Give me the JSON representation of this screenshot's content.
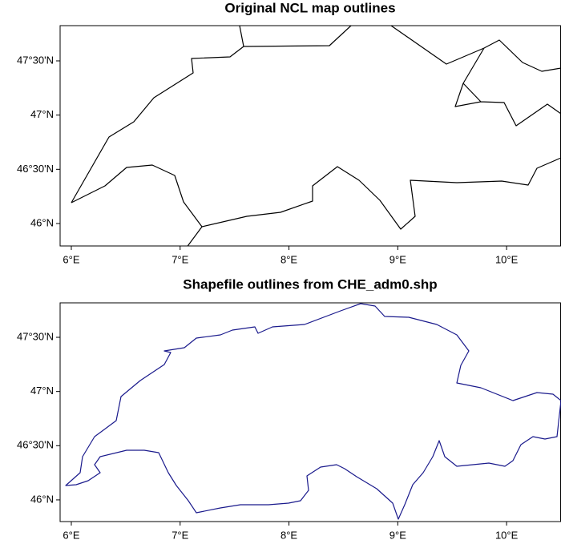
{
  "chart_data": [
    {
      "type": "map",
      "title": "Original NCL map outlines",
      "color": "#000000",
      "xlim": [
        5.897,
        10.5
      ],
      "ylim": [
        45.793,
        47.825
      ],
      "xticks": [
        {
          "value": 6,
          "label": "6°E"
        },
        {
          "value": 7,
          "label": "7°E"
        },
        {
          "value": 8,
          "label": "8°E"
        },
        {
          "value": 9,
          "label": "9°E"
        },
        {
          "value": 10,
          "label": "10°E"
        }
      ],
      "yticks": [
        {
          "value": 46,
          "label": "46°N"
        },
        {
          "value": 46.5,
          "label": "46°30'N"
        },
        {
          "value": 47,
          "label": "47°N"
        },
        {
          "value": 47.5,
          "label": "47°30'N"
        }
      ]
    },
    {
      "type": "map",
      "title": "Shapefile outlines from CHE_adm0.shp",
      "color": "#1a1a8c",
      "xlim": [
        5.897,
        10.5
      ],
      "ylim": [
        45.8,
        47.818
      ],
      "xticks": [
        {
          "value": 6,
          "label": "6°E"
        },
        {
          "value": 7,
          "label": "7°E"
        },
        {
          "value": 8,
          "label": "8°E"
        },
        {
          "value": 9,
          "label": "9°E"
        },
        {
          "value": 10,
          "label": "10°E"
        }
      ],
      "yticks": [
        {
          "value": 46,
          "label": "46°N"
        },
        {
          "value": 46.5,
          "label": "46°30'N"
        },
        {
          "value": 47,
          "label": "47°N"
        },
        {
          "value": 47.5,
          "label": "47°30'N"
        }
      ]
    }
  ]
}
